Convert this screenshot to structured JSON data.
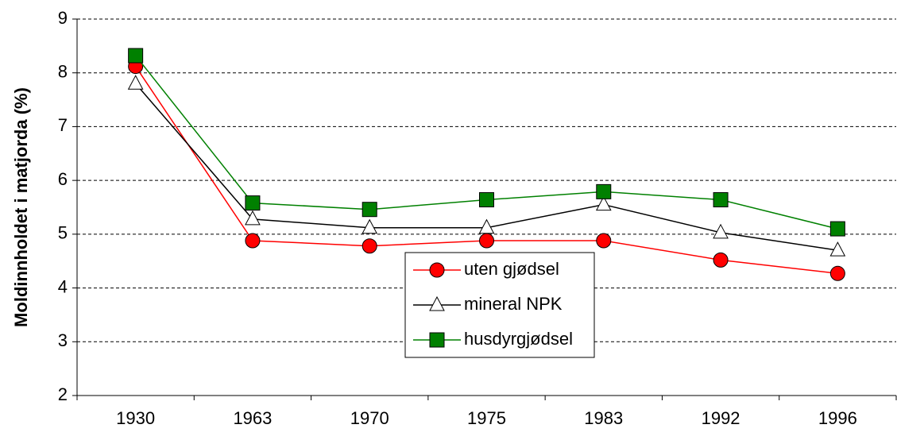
{
  "chart_data": {
    "type": "line",
    "y_label": "Moldinnholdet i matjorda (%)",
    "categories": [
      "1930",
      "1963",
      "1970",
      "1975",
      "1983",
      "1992",
      "1996"
    ],
    "series": [
      {
        "name": "uten gjødsel",
        "color": "#ff0000",
        "marker": "circle",
        "values": [
          8.12,
          4.88,
          4.78,
          4.88,
          4.88,
          4.52,
          4.27
        ]
      },
      {
        "name": "mineral NPK",
        "color": "#000000",
        "marker": "triangle",
        "values": [
          7.8,
          5.28,
          5.12,
          5.12,
          5.55,
          5.03,
          4.7
        ]
      },
      {
        "name": "husdyrgjødsel",
        "color": "#008000",
        "marker": "square",
        "values": [
          8.32,
          5.58,
          5.46,
          5.64,
          5.79,
          5.64,
          5.1
        ]
      }
    ],
    "ylim": [
      2,
      9
    ],
    "yticks": [
      2,
      3,
      4,
      5,
      6,
      7,
      8,
      9
    ],
    "grid": true
  }
}
